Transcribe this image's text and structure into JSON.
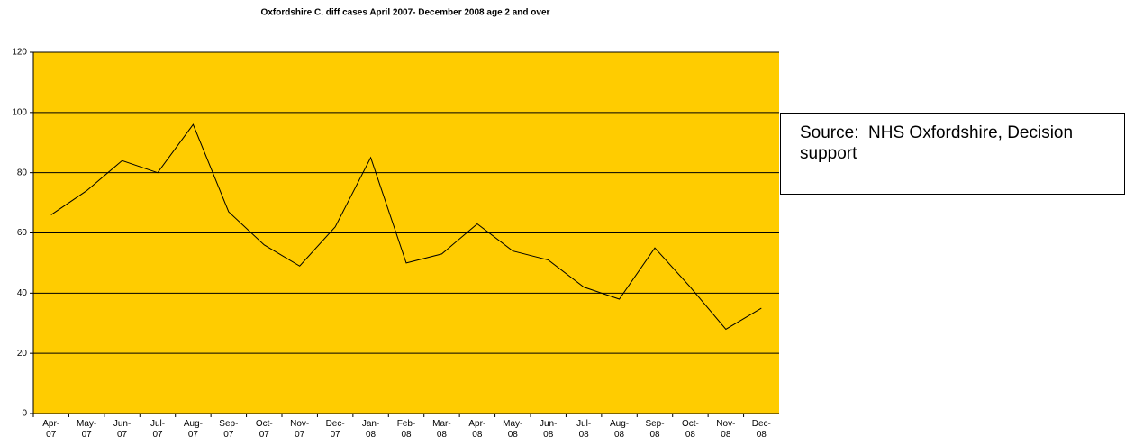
{
  "chart_data": {
    "type": "line",
    "title": "Oxfordshire C. diff cases April 2007- December 2008 age 2 and over",
    "annotation": "Source:  NHS Oxfordshire, Decision support",
    "categories": [
      "Apr-07",
      "May-07",
      "Jun-07",
      "Jul-07",
      "Aug-07",
      "Sep-07",
      "Oct-07",
      "Nov-07",
      "Dec-07",
      "Jan-08",
      "Feb-08",
      "Mar-08",
      "Apr-08",
      "May-08",
      "Jun-08",
      "Jul-08",
      "Aug-08",
      "Sep-08",
      "Oct-08",
      "Nov-08",
      "Dec-08"
    ],
    "values": [
      66,
      74,
      84,
      80,
      96,
      67,
      56,
      49,
      62,
      85,
      50,
      53,
      63,
      54,
      51,
      42,
      38,
      55,
      42,
      28,
      35
    ],
    "color": "#000000",
    "background": "#ffcc00",
    "ylim": [
      0,
      120
    ],
    "yticks": [
      0,
      20,
      40,
      60,
      80,
      100,
      120
    ],
    "grid": true
  }
}
